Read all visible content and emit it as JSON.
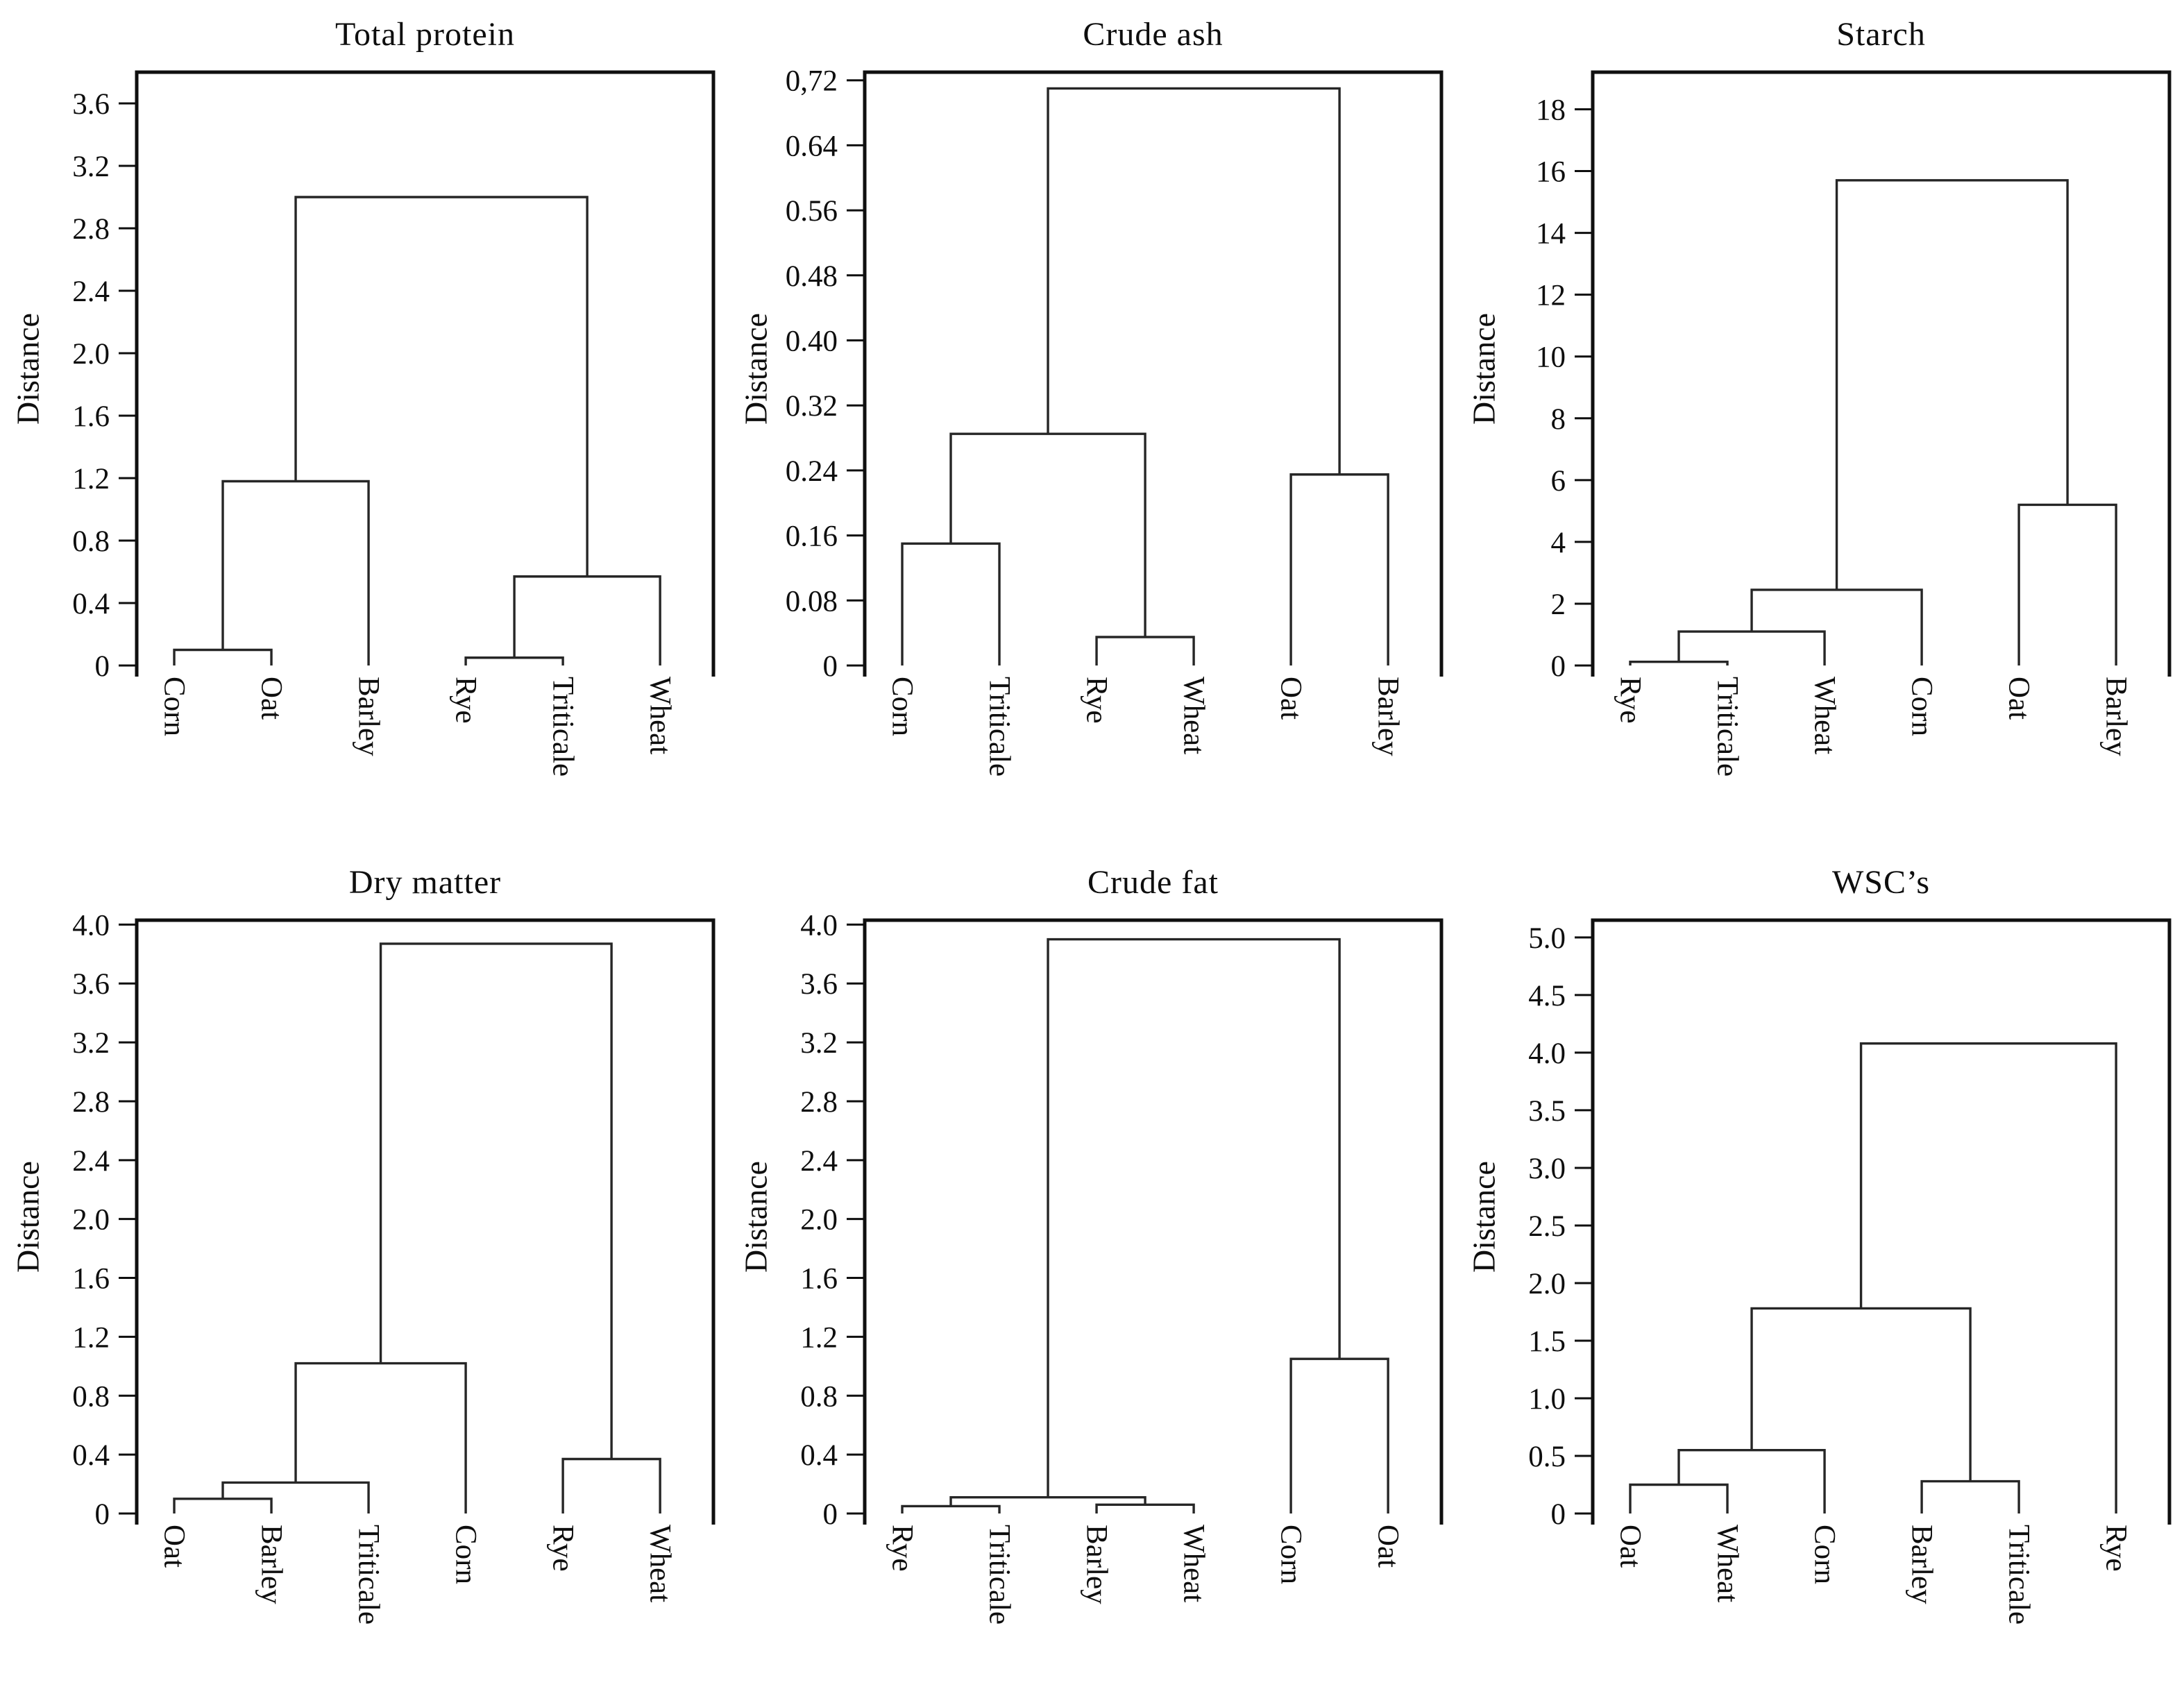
{
  "figure": {
    "background": "#ffffff",
    "frame_color": "#0f0f0f",
    "line_color": "#262626",
    "text_color": "#0e0e0e",
    "ylabel_all": "Distance"
  },
  "chart_data": [
    {
      "type": "dendrogram",
      "title": "Total protein",
      "ylabel": "Distance",
      "ylim": [
        0,
        3.8
      ],
      "grid": false,
      "yticks": [
        {
          "label": "0",
          "v": 0
        },
        {
          "label": "0.4",
          "v": 0.4
        },
        {
          "label": "0.8",
          "v": 0.8
        },
        {
          "label": "1.2",
          "v": 1.2
        },
        {
          "label": "1.6",
          "v": 1.6
        },
        {
          "label": "2.0",
          "v": 2.0
        },
        {
          "label": "2.4",
          "v": 2.4
        },
        {
          "label": "2.8",
          "v": 2.8
        },
        {
          "label": "3.2",
          "v": 3.2
        },
        {
          "label": "3.6",
          "v": 3.6
        }
      ],
      "leaves": [
        "Corn",
        "Oat",
        "Barley",
        "Rye",
        "Triticale",
        "Wheat"
      ],
      "tree": {
        "h": 3.0,
        "c": [
          {
            "h": 1.18,
            "c": [
              {
                "h": 0.1,
                "c": [
                  "Corn",
                  "Oat"
                ]
              },
              "Barley"
            ]
          },
          {
            "h": 0.57,
            "c": [
              {
                "h": 0.05,
                "c": [
                  "Rye",
                  "Triticale"
                ]
              },
              "Wheat"
            ]
          }
        ]
      }
    },
    {
      "type": "dendrogram",
      "title": "Crude ash",
      "ylabel": "Distance",
      "ylim": [
        0,
        0.73
      ],
      "grid": false,
      "yticks": [
        {
          "label": "0",
          "v": 0
        },
        {
          "label": "0.08",
          "v": 0.08
        },
        {
          "label": "0.16",
          "v": 0.16
        },
        {
          "label": "0.24",
          "v": 0.24
        },
        {
          "label": "0.32",
          "v": 0.32
        },
        {
          "label": "0.40",
          "v": 0.4
        },
        {
          "label": "0.48",
          "v": 0.48
        },
        {
          "label": "0.56",
          "v": 0.56
        },
        {
          "label": "0.64",
          "v": 0.64
        },
        {
          "label": "0,72",
          "v": 0.72
        }
      ],
      "leaves": [
        "Corn",
        "Triticale",
        "Rye",
        "Wheat",
        "Oat",
        "Barley"
      ],
      "tree": {
        "h": 0.71,
        "c": [
          {
            "h": 0.285,
            "c": [
              {
                "h": 0.15,
                "c": [
                  "Corn",
                  "Triticale"
                ]
              },
              {
                "h": 0.035,
                "c": [
                  "Rye",
                  "Wheat"
                ]
              }
            ]
          },
          {
            "h": 0.235,
            "c": [
              "Oat",
              "Barley"
            ]
          }
        ]
      }
    },
    {
      "type": "dendrogram",
      "title": "Starch",
      "ylabel": "Distance",
      "ylim": [
        0,
        19.2
      ],
      "grid": false,
      "yticks": [
        {
          "label": "0",
          "v": 0
        },
        {
          "label": "2",
          "v": 2
        },
        {
          "label": "4",
          "v": 4
        },
        {
          "label": "6",
          "v": 6
        },
        {
          "label": "8",
          "v": 8
        },
        {
          "label": "10",
          "v": 10
        },
        {
          "label": "12",
          "v": 12
        },
        {
          "label": "14",
          "v": 14
        },
        {
          "label": "16",
          "v": 16
        },
        {
          "label": "18",
          "v": 18
        }
      ],
      "leaves": [
        "Rye",
        "Triticale",
        "Wheat",
        "Corn",
        "Oat",
        "Barley"
      ],
      "tree": {
        "h": 15.7,
        "c": [
          {
            "h": 2.45,
            "c": [
              {
                "h": 1.1,
                "c": [
                  {
                    "h": 0.12,
                    "c": [
                      "Rye",
                      "Triticale"
                    ]
                  },
                  "Wheat"
                ]
              },
              "Corn"
            ]
          },
          {
            "h": 5.2,
            "c": [
              "Oat",
              "Barley"
            ]
          }
        ]
      }
    },
    {
      "type": "dendrogram",
      "title": "Dry matter",
      "ylabel": "Distance",
      "ylim": [
        0,
        4.03
      ],
      "grid": false,
      "yticks": [
        {
          "label": "0",
          "v": 0
        },
        {
          "label": "0.4",
          "v": 0.4
        },
        {
          "label": "0.8",
          "v": 0.8
        },
        {
          "label": "1.2",
          "v": 1.2
        },
        {
          "label": "1.6",
          "v": 1.6
        },
        {
          "label": "2.0",
          "v": 2.0
        },
        {
          "label": "2.4",
          "v": 2.4
        },
        {
          "label": "2.8",
          "v": 2.8
        },
        {
          "label": "3.2",
          "v": 3.2
        },
        {
          "label": "3.6",
          "v": 3.6
        },
        {
          "label": "4.0",
          "v": 4.0
        }
      ],
      "leaves": [
        "Oat",
        "Barley",
        "Triticale",
        "Corn",
        "Rye",
        "Wheat"
      ],
      "tree": {
        "h": 3.87,
        "c": [
          {
            "h": 1.02,
            "c": [
              {
                "h": 0.21,
                "c": [
                  {
                    "h": 0.1,
                    "c": [
                      "Oat",
                      "Barley"
                    ]
                  },
                  "Triticale"
                ]
              },
              "Corn"
            ]
          },
          {
            "h": 0.37,
            "c": [
              "Rye",
              "Wheat"
            ]
          }
        ]
      }
    },
    {
      "type": "dendrogram",
      "title": "Crude fat",
      "ylabel": "Distance",
      "ylim": [
        0,
        4.03
      ],
      "grid": false,
      "yticks": [
        {
          "label": "0",
          "v": 0
        },
        {
          "label": "0.4",
          "v": 0.4
        },
        {
          "label": "0.8",
          "v": 0.8
        },
        {
          "label": "1.2",
          "v": 1.2
        },
        {
          "label": "1.6",
          "v": 1.6
        },
        {
          "label": "2.0",
          "v": 2.0
        },
        {
          "label": "2.4",
          "v": 2.4
        },
        {
          "label": "2.8",
          "v": 2.8
        },
        {
          "label": "3.2",
          "v": 3.2
        },
        {
          "label": "3.6",
          "v": 3.6
        },
        {
          "label": "4.0",
          "v": 4.0
        }
      ],
      "leaves": [
        "Rye",
        "Triticale",
        "Barley",
        "Wheat",
        "Corn",
        "Oat"
      ],
      "tree": {
        "h": 3.9,
        "c": [
          {
            "h": 0.11,
            "c": [
              {
                "h": 0.05,
                "c": [
                  "Rye",
                  "Triticale"
                ]
              },
              {
                "h": 0.06,
                "c": [
                  "Barley",
                  "Wheat"
                ]
              }
            ]
          },
          {
            "h": 1.05,
            "c": [
              "Corn",
              "Oat"
            ]
          }
        ]
      }
    },
    {
      "type": "dendrogram",
      "title": "WSC’s",
      "ylabel": "Distance",
      "ylim": [
        0,
        5.15
      ],
      "grid": false,
      "yticks": [
        {
          "label": "0",
          "v": 0
        },
        {
          "label": "0.5",
          "v": 0.5
        },
        {
          "label": "1.0",
          "v": 1.0
        },
        {
          "label": "1.5",
          "v": 1.5
        },
        {
          "label": "2.0",
          "v": 2.0
        },
        {
          "label": "2.5",
          "v": 2.5
        },
        {
          "label": "3.0",
          "v": 3.0
        },
        {
          "label": "3.5",
          "v": 3.5
        },
        {
          "label": "4.0",
          "v": 4.0
        },
        {
          "label": "4.5",
          "v": 4.5
        },
        {
          "label": "5.0",
          "v": 5.0
        }
      ],
      "leaves": [
        "Oat",
        "Wheat",
        "Corn",
        "Barley",
        "Triticale",
        "Rye"
      ],
      "tree": {
        "h": 4.08,
        "c": [
          {
            "h": 1.78,
            "c": [
              {
                "h": 0.55,
                "c": [
                  {
                    "h": 0.25,
                    "c": [
                      "Oat",
                      "Wheat"
                    ]
                  },
                  "Corn"
                ]
              },
              {
                "h": 0.28,
                "c": [
                  "Barley",
                  "Triticale"
                ]
              }
            ]
          },
          "Rye"
        ]
      }
    }
  ]
}
